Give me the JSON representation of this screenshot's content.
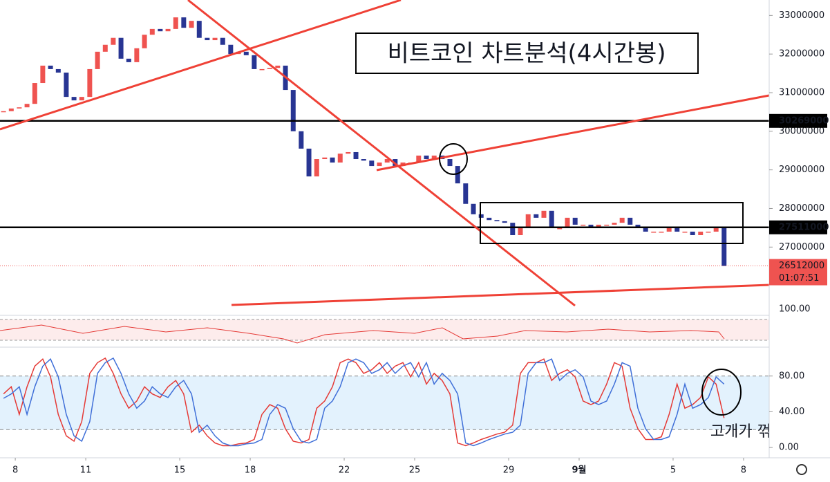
{
  "chart_data": [
    {
      "type": "candlestick",
      "title": "비트코인 차트분석(4시간봉)",
      "annotation": "고개가 꺾임",
      "x": [
        0.5,
        0.83,
        1.17,
        1.5,
        1.83,
        2.17,
        2.5,
        2.83,
        3.17,
        3.5,
        3.83,
        4.17,
        4.5,
        4.83,
        5.17,
        5.5,
        5.83,
        6.17,
        6.5,
        6.83,
        7.17,
        7.5,
        7.83,
        8.17,
        8.5,
        8.83,
        9.17,
        9.5,
        9.83,
        10.17,
        10.5,
        10.83,
        11.17,
        11.5,
        11.83,
        12.17,
        12.5,
        12.83,
        13.17,
        13.5,
        13.83,
        14.17,
        14.5,
        14.83,
        15.17,
        15.5,
        15.83,
        16.17,
        16.5,
        16.83,
        17.17,
        17.5,
        17.83,
        18.17,
        18.5,
        18.83,
        19.17,
        19.5,
        19.83,
        20.17,
        20.5,
        20.83,
        21.17,
        21.5,
        21.83,
        22.17,
        22.5,
        22.83,
        23.17,
        23.5,
        23.83,
        24.17,
        24.5,
        24.83,
        25.17,
        25.5,
        25.83,
        26.17,
        26.5,
        26.83,
        27.17,
        27.5,
        27.83,
        28.17,
        28.5,
        28.83,
        29.17,
        29.5,
        29.83,
        30.17,
        30.5,
        30.83,
        31.17
      ],
      "values": [
        30520000,
        30590000,
        30620000,
        30710000,
        31250000,
        31700000,
        31610000,
        31520000,
        30890000,
        30800000,
        30890000,
        31610000,
        32060000,
        32240000,
        32420000,
        31880000,
        31790000,
        32150000,
        32500000,
        32650000,
        32590000,
        32650000,
        32950000,
        32680000,
        32860000,
        32420000,
        32360000,
        32420000,
        32240000,
        32000000,
        32060000,
        31970000,
        31610000,
        31610000,
        31640000,
        31700000,
        31070000,
        30000000,
        29550000,
        28830000,
        29280000,
        29320000,
        29190000,
        29420000,
        29460000,
        29280000,
        29240000,
        29100000,
        29190000,
        29280000,
        29100000,
        29190000,
        29190000,
        29370000,
        29280000,
        29370000,
        29280000,
        29100000,
        28650000,
        28120000,
        27850000,
        27760000,
        27700000,
        27670000,
        27630000,
        27310000,
        27490000,
        27850000,
        27760000,
        27940000,
        27490000,
        27490000,
        27760000,
        27580000,
        27580000,
        27530000,
        27580000,
        27580000,
        27630000,
        27760000,
        27580000,
        27530000,
        27400000,
        27400000,
        27400000,
        27490000,
        27400000,
        27400000,
        27310000,
        27400000,
        27400000,
        27490000,
        26512000
      ],
      "up_color": "#ef5350",
      "down_color": "#283593",
      "xlim": [
        0.35,
        33.09
      ],
      "xticks": [
        {
          "value": 1,
          "label": "8"
        },
        {
          "value": 4,
          "label": "11"
        },
        {
          "value": 8,
          "label": "15"
        },
        {
          "value": 11,
          "label": "18"
        },
        {
          "value": 15,
          "label": "22"
        },
        {
          "value": 18,
          "label": "25"
        },
        {
          "value": 22,
          "label": "29"
        },
        {
          "value": 25,
          "label": "9월"
        },
        {
          "value": 29,
          "label": "5"
        },
        {
          "value": 32,
          "label": "8"
        }
      ],
      "ylim": [
        25250000,
        33400000
      ],
      "yticks": [
        27000000,
        28000000,
        29000000,
        30000000,
        31000000,
        32000000,
        33000000
      ],
      "levels": [
        30269000,
        27511000
      ],
      "last_price": 26512000,
      "countdown": "01:07:51",
      "rsi_top": {
        "value": 100,
        "label": "100.00"
      }
    },
    {
      "type": "line",
      "x": [
        0.5,
        0.83,
        1.17,
        1.5,
        1.83,
        2.17,
        2.5,
        2.83,
        3.17,
        3.5,
        3.83,
        4.17,
        4.5,
        4.83,
        5.17,
        5.5,
        5.83,
        6.17,
        6.5,
        6.83,
        7.17,
        7.5,
        7.83,
        8.17,
        8.5,
        8.83,
        9.17,
        9.5,
        9.83,
        10.17,
        10.5,
        10.83,
        11.17,
        11.5,
        11.83,
        12.17,
        12.5,
        12.83,
        13.17,
        13.5,
        13.83,
        14.17,
        14.5,
        14.83,
        15.17,
        15.5,
        15.83,
        16.17,
        16.5,
        16.83,
        17.17,
        17.5,
        17.83,
        18.17,
        18.5,
        18.83,
        19.17,
        19.5,
        19.83,
        20.17,
        20.5,
        20.83,
        21.17,
        21.5,
        21.83,
        22.17,
        22.5,
        22.83,
        23.17,
        23.5,
        23.83,
        24.17,
        24.5,
        24.83,
        25.17,
        25.5,
        25.83,
        26.17,
        26.5,
        26.83,
        27.17,
        27.5,
        27.83,
        28.17,
        28.5,
        28.83,
        29.17,
        29.5,
        29.83,
        30.17,
        30.5,
        30.83,
        31.17
      ],
      "series": [
        {
          "color": "#e53935",
          "values": [
            60,
            68,
            37,
            68,
            91,
            99,
            79,
            37,
            13,
            7,
            29,
            83,
            95,
            100,
            83,
            60,
            44,
            52,
            68,
            60,
            56,
            68,
            75,
            60,
            17,
            25,
            13,
            5,
            2,
            2,
            4,
            5,
            9,
            37,
            48,
            44,
            21,
            7,
            5,
            9,
            44,
            52,
            68,
            95,
            99,
            95,
            83,
            87,
            95,
            83,
            91,
            95,
            79,
            95,
            71,
            83,
            75,
            60,
            5,
            2,
            5,
            9,
            12,
            15,
            17,
            25,
            83,
            95,
            95,
            99,
            75,
            83,
            87,
            79,
            52,
            48,
            52,
            71,
            95,
            91,
            44,
            21,
            9,
            9,
            12,
            37,
            71,
            44,
            48,
            56,
            79,
            71,
            33
          ]
        },
        {
          "color": "#3f6fd8",
          "values": [
            55,
            60,
            68,
            37,
            68,
            91,
            99,
            79,
            37,
            13,
            7,
            29,
            83,
            95,
            100,
            83,
            60,
            44,
            52,
            68,
            60,
            56,
            68,
            75,
            60,
            17,
            25,
            13,
            5,
            2,
            2,
            4,
            5,
            9,
            37,
            48,
            44,
            21,
            7,
            5,
            9,
            44,
            52,
            68,
            95,
            99,
            95,
            83,
            87,
            95,
            83,
            91,
            95,
            79,
            95,
            71,
            83,
            75,
            60,
            5,
            2,
            5,
            9,
            12,
            15,
            17,
            25,
            83,
            95,
            95,
            99,
            75,
            83,
            87,
            79,
            52,
            48,
            52,
            71,
            95,
            91,
            44,
            21,
            9,
            9,
            12,
            37,
            71,
            44,
            48,
            56,
            79,
            71
          ]
        }
      ],
      "xlim": [
        0.35,
        33.09
      ],
      "ylim": [
        -10,
        110
      ],
      "yticks": [
        {
          "value": 80,
          "label": "80.00"
        },
        {
          "value": 40,
          "label": "40.00"
        },
        {
          "value": 0,
          "label": "0.00"
        }
      ],
      "band": [
        20,
        80
      ]
    }
  ]
}
